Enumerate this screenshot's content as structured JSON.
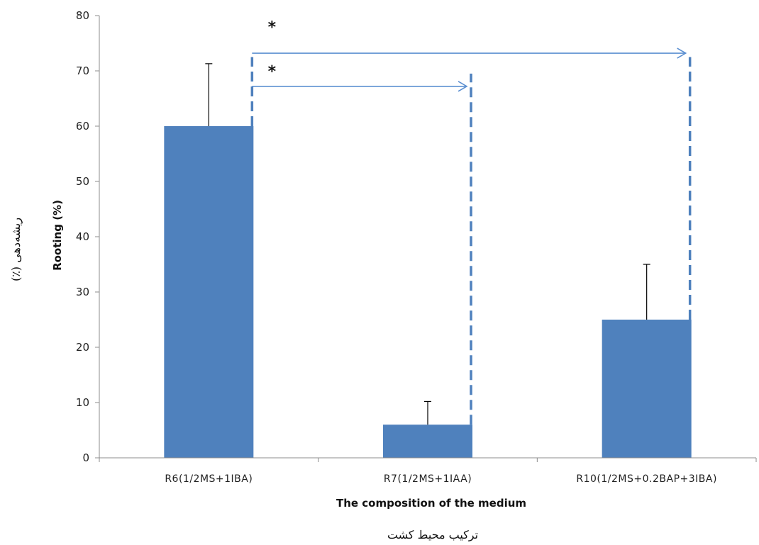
{
  "chart_data": {
    "type": "bar",
    "categories": [
      "R6(1/2MS+1IBA)",
      "R7(1/2MS+1IAA)",
      "R10(1/2MS+0.2BAP+3IBA)"
    ],
    "values": [
      60,
      6,
      25
    ],
    "error_upper": [
      71.3,
      10.2,
      35
    ],
    "ylim": [
      0,
      80
    ],
    "yticks": [
      0,
      10,
      20,
      30,
      40,
      50,
      60,
      70,
      80
    ],
    "xlabel": "The composition  of the medium",
    "xlabel_fa": "ترکیب محیط کشت",
    "ylabel": "Rooting (%)",
    "ylabel_fa": "ریشه‌دهی (٪)",
    "bar_color": "#4f81bd",
    "grid": false,
    "annotations": [
      {
        "label": "*",
        "from": 0,
        "to": 2
      },
      {
        "label": "*",
        "from": 0,
        "to": 1
      }
    ]
  }
}
